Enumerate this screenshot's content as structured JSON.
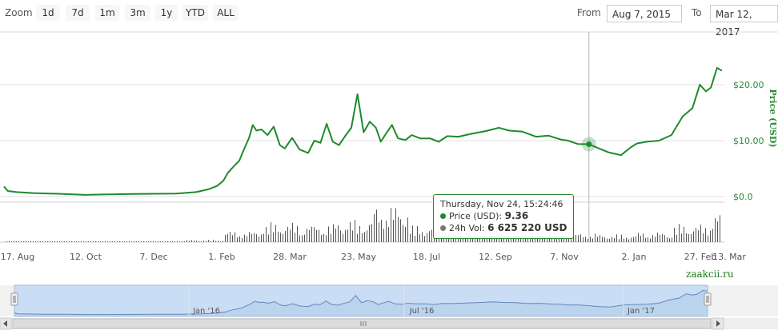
{
  "toolbar": {
    "zoom_label": "Zoom",
    "range_buttons": [
      "1d",
      "7d",
      "1m",
      "3m",
      "1y",
      "YTD",
      "ALL"
    ],
    "from_label": "From",
    "from_value": "Aug 7, 2015",
    "to_label": "To",
    "to_value": "Mar 12, 2017"
  },
  "tooltip": {
    "date": "Thursday, Nov 24, 15:24:46",
    "price_label": "Price (USD):",
    "price_value": "9.36",
    "vol_label": "24h Vol:",
    "vol_value": "6 625 220 USD"
  },
  "watermark": "zaakcii.ru",
  "colors": {
    "line": "#1e8a2e",
    "volume": "#555555",
    "navigator_fill": "#c9ddf5",
    "navigator_line": "#6688bb"
  },
  "chart_data": {
    "type": "line",
    "ylabel": "Price (USD)",
    "y_ticks": [
      "$0.0",
      "$10.00",
      "$20.00"
    ],
    "ylim": [
      0,
      25
    ],
    "x_ticks": [
      "17. Aug",
      "12. Oct",
      "7. Dec",
      "1. Feb",
      "28. Mar",
      "23. May",
      "18. Jul",
      "12. Sep",
      "7. Nov",
      "2. Jan",
      "27. Feb",
      "13. Mar"
    ],
    "grid": true,
    "series": [
      {
        "name": "Price (USD)",
        "x": [
          "2015-08-07",
          "2015-08-10",
          "2015-08-17",
          "2015-09-01",
          "2015-09-20",
          "2015-10-12",
          "2015-11-01",
          "2015-11-20",
          "2015-12-07",
          "2015-12-25",
          "2016-01-10",
          "2016-01-20",
          "2016-01-27",
          "2016-02-01",
          "2016-02-05",
          "2016-02-10",
          "2016-02-14",
          "2016-02-18",
          "2016-02-22",
          "2016-02-25",
          "2016-02-28",
          "2016-03-03",
          "2016-03-08",
          "2016-03-13",
          "2016-03-18",
          "2016-03-22",
          "2016-03-28",
          "2016-04-03",
          "2016-04-10",
          "2016-04-15",
          "2016-04-20",
          "2016-04-25",
          "2016-04-30",
          "2016-05-05",
          "2016-05-10",
          "2016-05-15",
          "2016-05-20",
          "2016-05-25",
          "2016-05-30",
          "2016-06-04",
          "2016-06-08",
          "2016-06-12",
          "2016-06-17",
          "2016-06-22",
          "2016-06-28",
          "2016-07-03",
          "2016-07-10",
          "2016-07-18",
          "2016-07-25",
          "2016-08-01",
          "2016-08-10",
          "2016-08-20",
          "2016-09-01",
          "2016-09-12",
          "2016-09-20",
          "2016-10-01",
          "2016-10-12",
          "2016-10-22",
          "2016-11-01",
          "2016-11-07",
          "2016-11-15",
          "2016-11-24",
          "2016-12-01",
          "2016-12-10",
          "2016-12-20",
          "2016-12-28",
          "2017-01-02",
          "2017-01-10",
          "2017-01-20",
          "2017-01-30",
          "2017-02-08",
          "2017-02-16",
          "2017-02-22",
          "2017-02-27",
          "2017-03-03",
          "2017-03-08",
          "2017-03-12"
        ],
        "values": [
          1.8,
          1.0,
          0.8,
          0.6,
          0.5,
          0.3,
          0.4,
          0.45,
          0.5,
          0.55,
          0.8,
          1.3,
          1.9,
          2.8,
          4.3,
          5.5,
          6.4,
          8.5,
          10.5,
          12.8,
          11.8,
          12.0,
          11.0,
          12.5,
          9.2,
          8.6,
          10.5,
          8.4,
          7.8,
          10.0,
          9.6,
          13.0,
          9.8,
          9.2,
          10.8,
          12.3,
          18.3,
          11.5,
          13.4,
          12.3,
          9.8,
          11.2,
          12.8,
          10.4,
          10.1,
          11.0,
          10.4,
          10.4,
          9.8,
          10.8,
          10.7,
          11.2,
          11.7,
          12.3,
          11.8,
          11.6,
          10.7,
          10.9,
          10.2,
          10.0,
          9.4,
          9.36,
          8.7,
          7.9,
          7.4,
          8.8,
          9.5,
          9.8,
          10.0,
          11.0,
          14.3,
          15.8,
          20.0,
          18.8,
          19.5,
          23.0,
          22.5
        ]
      },
      {
        "name": "24h Vol",
        "x": [
          "2015-08",
          "2015-09",
          "2015-10",
          "2015-11",
          "2015-12",
          "2016-01",
          "2016-02",
          "2016-03",
          "2016-04",
          "2016-05",
          "2016-06",
          "2016-07",
          "2016-08",
          "2016-09",
          "2016-10",
          "2016-11",
          "2016-12",
          "2017-01",
          "2017-02",
          "2017-03"
        ],
        "values": [
          0.2,
          0.15,
          0.15,
          0.15,
          0.2,
          0.4,
          2.0,
          3.5,
          3.2,
          4.0,
          6.6,
          3.0,
          2.2,
          2.0,
          1.8,
          1.6,
          1.4,
          1.8,
          3.2,
          5.5
        ]
      }
    ],
    "navigator_ticks": [
      "Jan '16",
      "Jul '16",
      "Jan '17"
    ]
  }
}
